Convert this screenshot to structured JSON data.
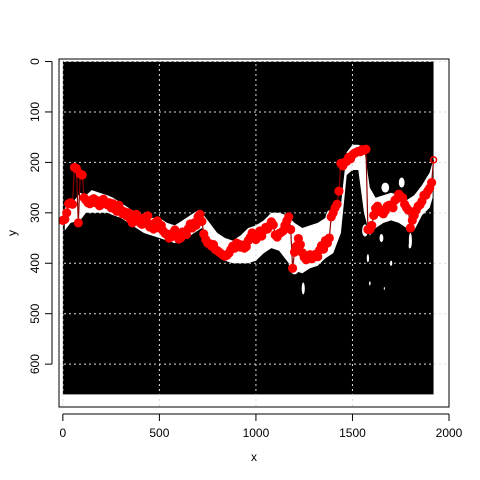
{
  "chart_data": {
    "type": "scatter",
    "xlabel": "x",
    "ylabel": "y",
    "xlim": [
      -20,
      2000
    ],
    "ylim": [
      685,
      -5
    ],
    "x_ticks": [
      0,
      500,
      1000,
      1500,
      2000
    ],
    "y_ticks": [
      0,
      100,
      200,
      300,
      400,
      500,
      600
    ],
    "grid": true,
    "image_extent": {
      "x": [
        0,
        1920
      ],
      "y": [
        0,
        660
      ]
    },
    "colors": {
      "image": "#000000",
      "ridge_band": "#ffffff",
      "points": "#ff0000",
      "segments": "#8b0000",
      "grid": "#dddddd"
    },
    "ridge_band_outline": [
      [
        10,
        290
      ],
      [
        40,
        285
      ],
      [
        90,
        260
      ],
      [
        120,
        265
      ],
      [
        150,
        255
      ],
      [
        190,
        260
      ],
      [
        230,
        265
      ],
      [
        260,
        270
      ],
      [
        300,
        280
      ],
      [
        340,
        290
      ],
      [
        380,
        300
      ],
      [
        420,
        305
      ],
      [
        460,
        310
      ],
      [
        500,
        310
      ],
      [
        540,
        320
      ],
      [
        580,
        325
      ],
      [
        620,
        315
      ],
      [
        660,
        305
      ],
      [
        700,
        295
      ],
      [
        720,
        300
      ],
      [
        760,
        320
      ],
      [
        800,
        340
      ],
      [
        840,
        350
      ],
      [
        880,
        355
      ],
      [
        920,
        345
      ],
      [
        960,
        330
      ],
      [
        1000,
        325
      ],
      [
        1040,
        315
      ],
      [
        1080,
        300
      ],
      [
        1120,
        300
      ],
      [
        1160,
        305
      ],
      [
        1200,
        320
      ],
      [
        1240,
        330
      ],
      [
        1280,
        325
      ],
      [
        1320,
        320
      ],
      [
        1360,
        310
      ],
      [
        1400,
        300
      ],
      [
        1440,
        285
      ],
      [
        1470,
        180
      ],
      [
        1500,
        165
      ],
      [
        1530,
        165
      ],
      [
        1560,
        170
      ],
      [
        1590,
        250
      ],
      [
        1620,
        270
      ],
      [
        1660,
        265
      ],
      [
        1700,
        260
      ],
      [
        1740,
        265
      ],
      [
        1780,
        275
      ],
      [
        1820,
        265
      ],
      [
        1860,
        245
      ],
      [
        1900,
        220
      ],
      [
        1915,
        200
      ],
      [
        1915,
        270
      ],
      [
        1900,
        290
      ],
      [
        1860,
        305
      ],
      [
        1820,
        335
      ],
      [
        1780,
        330
      ],
      [
        1740,
        320
      ],
      [
        1700,
        315
      ],
      [
        1660,
        320
      ],
      [
        1620,
        330
      ],
      [
        1590,
        345
      ],
      [
        1560,
        300
      ],
      [
        1530,
        215
      ],
      [
        1500,
        215
      ],
      [
        1470,
        225
      ],
      [
        1440,
        340
      ],
      [
        1400,
        380
      ],
      [
        1360,
        390
      ],
      [
        1320,
        405
      ],
      [
        1280,
        410
      ],
      [
        1240,
        420
      ],
      [
        1200,
        415
      ],
      [
        1160,
        395
      ],
      [
        1120,
        375
      ],
      [
        1080,
        370
      ],
      [
        1040,
        380
      ],
      [
        1000,
        395
      ],
      [
        960,
        400
      ],
      [
        920,
        400
      ],
      [
        880,
        400
      ],
      [
        840,
        395
      ],
      [
        800,
        385
      ],
      [
        760,
        360
      ],
      [
        720,
        330
      ],
      [
        700,
        335
      ],
      [
        660,
        345
      ],
      [
        620,
        350
      ],
      [
        580,
        360
      ],
      [
        540,
        355
      ],
      [
        500,
        350
      ],
      [
        460,
        345
      ],
      [
        420,
        340
      ],
      [
        380,
        330
      ],
      [
        340,
        320
      ],
      [
        300,
        310
      ],
      [
        260,
        305
      ],
      [
        230,
        300
      ],
      [
        190,
        300
      ],
      [
        150,
        300
      ],
      [
        120,
        300
      ],
      [
        90,
        315
      ],
      [
        40,
        320
      ],
      [
        10,
        335
      ]
    ],
    "ridge_blobs": [
      {
        "x": 1200,
        "y": 400,
        "rx": 30,
        "ry": 22
      },
      {
        "x": 1290,
        "y": 360,
        "rx": 40,
        "ry": 25
      },
      {
        "x": 1380,
        "y": 330,
        "rx": 25,
        "ry": 35
      },
      {
        "x": 1565,
        "y": 335,
        "rx": 15,
        "ry": 12
      },
      {
        "x": 1800,
        "y": 355,
        "rx": 8,
        "ry": 15
      },
      {
        "x": 1670,
        "y": 250,
        "rx": 20,
        "ry": 10
      },
      {
        "x": 1755,
        "y": 240,
        "rx": 15,
        "ry": 10
      },
      {
        "x": 1000,
        "y": 340,
        "rx": 18,
        "ry": 12
      },
      {
        "x": 1245,
        "y": 450,
        "rx": 8,
        "ry": 12
      },
      {
        "x": 1650,
        "y": 350,
        "rx": 10,
        "ry": 8
      },
      {
        "x": 1580,
        "y": 390,
        "rx": 6,
        "ry": 8
      },
      {
        "x": 1700,
        "y": 400,
        "rx": 6,
        "ry": 5
      },
      {
        "x": 1590,
        "y": 440,
        "rx": 4,
        "ry": 4
      },
      {
        "x": 1665,
        "y": 450,
        "rx": 3,
        "ry": 3
      },
      {
        "x": 1795,
        "y": 365,
        "rx": 4,
        "ry": 6
      },
      {
        "x": 240,
        "y": 285,
        "rx": 20,
        "ry": 10
      },
      {
        "x": 500,
        "y": 330,
        "rx": 20,
        "ry": 12
      },
      {
        "x": 620,
        "y": 340,
        "rx": 18,
        "ry": 12
      }
    ],
    "series": [
      {
        "x": [
          0,
          10,
          20,
          30,
          40,
          50,
          60,
          70,
          80,
          90,
          100,
          110,
          120,
          130,
          140,
          150,
          160,
          170,
          180,
          190,
          200,
          210,
          220,
          230,
          240,
          250,
          260,
          270,
          280,
          290,
          300,
          310,
          320,
          330,
          340,
          350,
          360,
          370,
          380,
          390,
          400,
          410,
          420,
          430,
          440,
          450,
          460,
          470,
          480,
          490,
          500,
          510,
          520,
          530,
          540,
          550,
          560,
          570,
          580,
          590,
          600,
          610,
          620,
          630,
          640,
          650,
          660,
          670,
          680,
          690,
          700,
          710,
          720,
          730,
          740,
          750,
          760,
          770,
          780,
          790,
          800,
          810,
          820,
          830,
          840,
          850,
          860,
          870,
          880,
          890,
          900,
          910,
          920,
          930,
          940,
          950,
          960,
          970,
          980,
          990,
          1000,
          1010,
          1020,
          1030,
          1040,
          1050,
          1060,
          1070,
          1080,
          1090,
          1100,
          1110,
          1120,
          1130,
          1140,
          1150,
          1160,
          1170,
          1180,
          1190,
          1200,
          1210,
          1220,
          1230,
          1240,
          1250,
          1260,
          1270,
          1280,
          1290,
          1300,
          1310,
          1320,
          1330,
          1340,
          1350,
          1360,
          1370,
          1380,
          1390,
          1400,
          1410,
          1420,
          1430,
          1440,
          1450,
          1460,
          1470,
          1480,
          1490,
          1500,
          1510,
          1520,
          1530,
          1540,
          1550,
          1560,
          1570,
          1580,
          1590,
          1600,
          1610,
          1620,
          1630,
          1640,
          1650,
          1660,
          1670,
          1680,
          1690,
          1700,
          1710,
          1720,
          1730,
          1740,
          1750,
          1760,
          1770,
          1780,
          1790,
          1800,
          1810,
          1820,
          1830,
          1840,
          1850,
          1860,
          1870,
          1880,
          1890,
          1900,
          1910,
          1920
        ],
        "y": [
          315,
          313,
          300,
          282,
          280,
          283,
          210,
          212,
          320,
          223,
          225,
          270,
          275,
          280,
          282,
          274,
          272,
          280,
          276,
          286,
          283,
          273,
          279,
          284,
          280,
          290,
          282,
          293,
          297,
          285,
          294,
          302,
          298,
          306,
          300,
          313,
          320,
          305,
          303,
          315,
          320,
          323,
          310,
          314,
          306,
          328,
          323,
          332,
          319,
          316,
          330,
          325,
          336,
          341,
          342,
          350,
          348,
          340,
          334,
          345,
          352,
          350,
          338,
          340,
          343,
          331,
          322,
          330,
          320,
          325,
          308,
          303,
          317,
          342,
          353,
          360,
          361,
          366,
          363,
          373,
          375,
          378,
          381,
          384,
          386,
          384,
          380,
          373,
          366,
          370,
          360,
          362,
          368,
          364,
          370,
          367,
          355,
          349,
          340,
          346,
          353,
          342,
          336,
          346,
          335,
          329,
          332,
          326,
          318,
          324,
          344,
          348,
          341,
          339,
          336,
          325,
          316,
          308,
          333,
          410,
          378,
          366,
          351,
          363,
          379,
          388,
          393,
          386,
          383,
          391,
          385,
          382,
          387,
          374,
          365,
          372,
          355,
          360,
          350,
          308,
          300,
          290,
          283,
          257,
          202,
          207,
          200,
          198,
          190,
          193,
          185,
          182,
          180,
          178,
          179,
          175,
          176,
          174,
          333,
          333,
          325,
          305,
          291,
          287,
          293,
          299,
          302,
          296,
          287,
          285,
          285,
          290,
          275,
          272,
          263,
          268,
          270,
          283,
          290,
          295,
          330,
          315,
          305,
          295,
          287,
          284,
          277,
          265,
          265,
          257,
          251,
          240,
          195
        ]
      }
    ]
  }
}
